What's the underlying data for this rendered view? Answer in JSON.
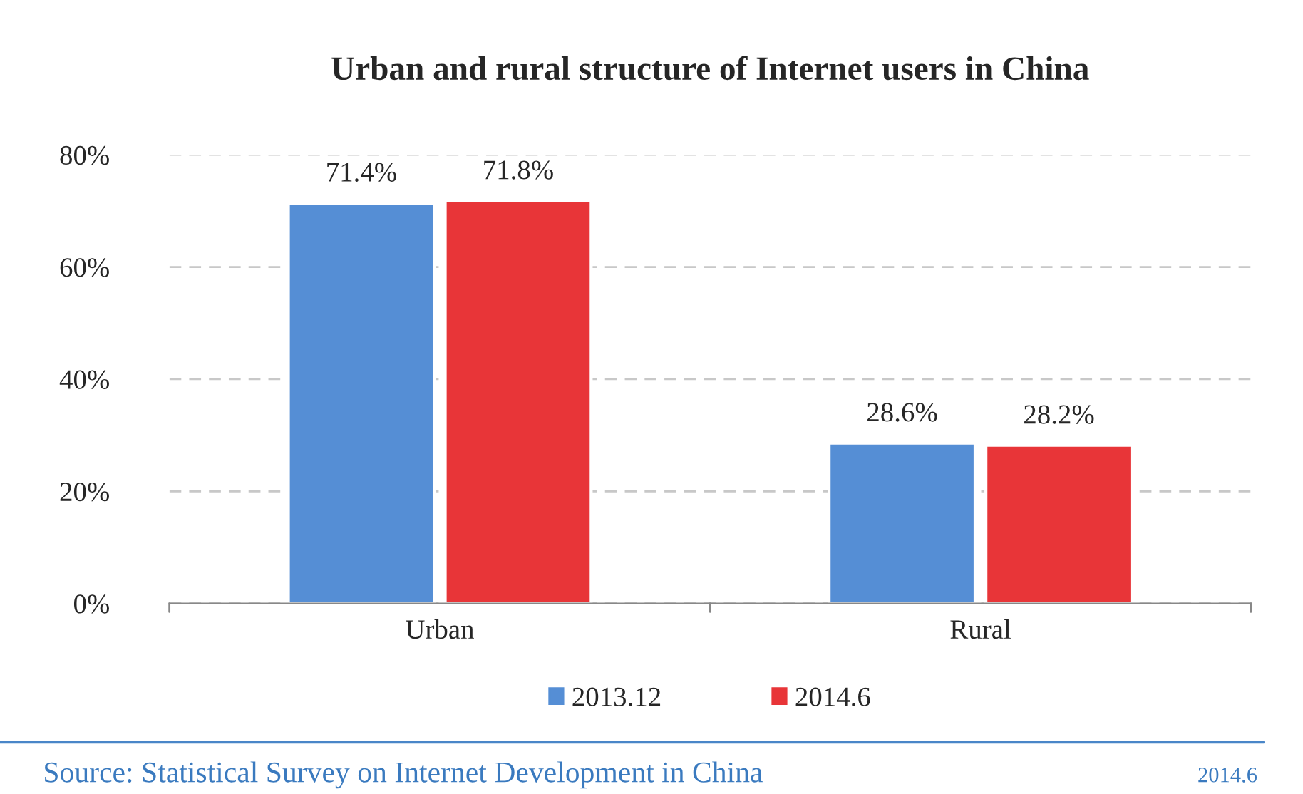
{
  "chart_data": {
    "type": "bar",
    "title": "Urban and rural structure of Internet users in China",
    "categories": [
      "Urban",
      "Rural"
    ],
    "series": [
      {
        "name": "2013.12",
        "color": "#558ed5",
        "values": [
          71.4,
          28.6
        ],
        "value_labels": [
          "71.4%",
          "28.6%"
        ]
      },
      {
        "name": "2014.6",
        "color": "#e83538",
        "values": [
          71.8,
          28.2
        ],
        "value_labels": [
          "71.8%",
          "28.2%"
        ]
      }
    ],
    "ylim": [
      0,
      80
    ],
    "yticks": [
      {
        "value": 0,
        "label": "0%"
      },
      {
        "value": 20,
        "label": "20%"
      },
      {
        "value": 40,
        "label": "40%"
      },
      {
        "value": 60,
        "label": "60%"
      },
      {
        "value": 80,
        "label": "80%"
      }
    ],
    "grid": "y",
    "legend": "bottom",
    "annotations": [
      "Source: Statistical Survey on Internet Development in China",
      "2014.6"
    ]
  }
}
